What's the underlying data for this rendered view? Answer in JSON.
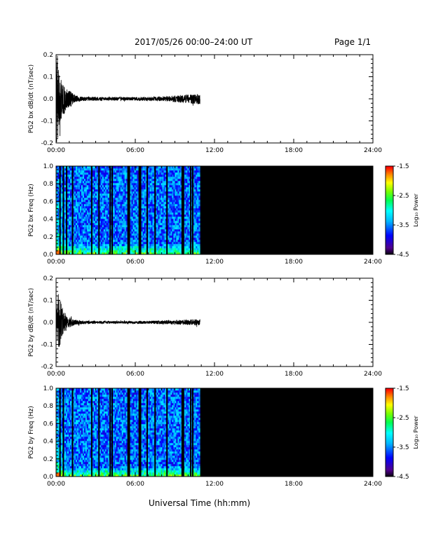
{
  "header": {
    "title": "2017/05/26  00:00–24:00 UT",
    "page": "Page 1/1"
  },
  "xlabel": "Universal Time (hh:mm)",
  "chart_data": [
    {
      "type": "line",
      "ylabel": "PG2 bx dB/dt (nT/sec)",
      "xlim": [
        0,
        24
      ],
      "ylim": [
        -0.2,
        0.2
      ],
      "xticks": [
        "00:00",
        "06:00",
        "12:00",
        "18:00",
        "24:00"
      ],
      "yticks": [
        "-0.2",
        "-0.1",
        "0.0",
        "0.1",
        "0.2"
      ],
      "data_end_hour": 10.9,
      "envelope": {
        "x": [
          0.0,
          0.1,
          0.2,
          0.3,
          0.5,
          0.8,
          1.0,
          1.5,
          2.0,
          4.0,
          6.0,
          8.0,
          9.0,
          10.0,
          10.9
        ],
        "amplitude": [
          0.2,
          0.2,
          0.15,
          0.1,
          0.08,
          0.05,
          0.04,
          0.015,
          0.01,
          0.008,
          0.008,
          0.01,
          0.015,
          0.02,
          0.025
        ]
      }
    },
    {
      "type": "heatmap",
      "ylabel": "PG2 bx Freq (Hz)",
      "xlim": [
        0,
        24
      ],
      "ylim": [
        0.0,
        1.0
      ],
      "xticks": [
        "00:00",
        "06:00",
        "12:00",
        "18:00",
        "24:00"
      ],
      "yticks": [
        "0.0",
        "0.2",
        "0.4",
        "0.6",
        "0.8",
        "1.0"
      ],
      "data_end_hour": 10.9,
      "gap_hours": [
        0.3,
        0.55,
        0.8,
        1.25,
        2.7,
        3.25,
        4.1,
        4.25,
        5.45,
        5.55,
        6.3,
        6.4,
        6.9,
        7.5,
        8.4,
        9.55,
        9.65,
        10.2,
        10.35
      ],
      "colorbar": {
        "label": "Log₁₀ Power",
        "range": [
          -4.5,
          -1.5
        ],
        "ticks": [
          "-1.5",
          "-2.5",
          "-3.5",
          "-4.5"
        ]
      }
    },
    {
      "type": "line",
      "ylabel": "PG2 by dB/dt (nT/sec)",
      "xlim": [
        0,
        24
      ],
      "ylim": [
        -0.2,
        0.2
      ],
      "xticks": [
        "00:00",
        "06:00",
        "12:00",
        "18:00",
        "24:00"
      ],
      "yticks": [
        "-0.2",
        "-0.1",
        "0.0",
        "0.1",
        "0.2"
      ],
      "data_end_hour": 10.9,
      "envelope": {
        "x": [
          0.0,
          0.1,
          0.2,
          0.4,
          0.6,
          0.8,
          1.0,
          1.5,
          2.0,
          4.0,
          6.0,
          8.0,
          9.0,
          10.0,
          10.9
        ],
        "amplitude": [
          0.03,
          0.1,
          0.14,
          0.08,
          0.05,
          0.035,
          0.025,
          0.012,
          0.008,
          0.006,
          0.006,
          0.008,
          0.01,
          0.012,
          0.015
        ]
      }
    },
    {
      "type": "heatmap",
      "ylabel": "PG2 by Freq (Hz)",
      "xlim": [
        0,
        24
      ],
      "ylim": [
        0.0,
        1.0
      ],
      "xticks": [
        "00:00",
        "06:00",
        "12:00",
        "18:00",
        "24:00"
      ],
      "yticks": [
        "0.0",
        "0.2",
        "0.4",
        "0.6",
        "0.8",
        "1.0"
      ],
      "data_end_hour": 10.9,
      "gap_hours": [
        0.3,
        0.55,
        1.25,
        2.7,
        3.25,
        4.1,
        4.25,
        5.45,
        5.55,
        6.3,
        6.4,
        6.9,
        7.5,
        8.4,
        9.55,
        9.65,
        10.2,
        10.35
      ],
      "colorbar": {
        "label": "Log₁₀ Power",
        "range": [
          -4.5,
          -1.5
        ],
        "ticks": [
          "-1.5",
          "-2.5",
          "-3.5",
          "-4.5"
        ]
      }
    }
  ]
}
